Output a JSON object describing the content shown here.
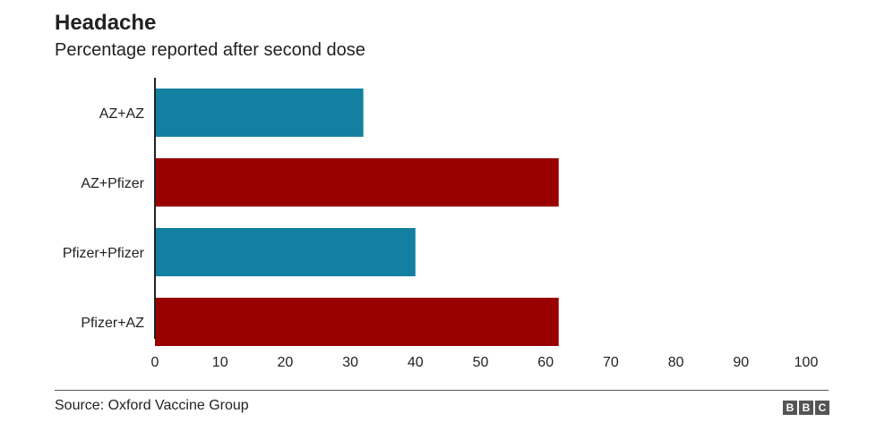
{
  "header": {
    "title": "Headache",
    "subtitle": "Percentage reported after second dose"
  },
  "footer": {
    "source": "Source: Oxford Vaccine Group",
    "logo_letters": [
      "B",
      "B",
      "C"
    ]
  },
  "colors": {
    "teal": "#1380A1",
    "red": "#990000",
    "axis": "#222222",
    "rule": "#555555"
  },
  "chart_data": {
    "type": "bar",
    "orientation": "horizontal",
    "categories": [
      "AZ+AZ",
      "AZ+Pfizer",
      "Pfizer+Pfizer",
      "Pfizer+AZ"
    ],
    "values": [
      32,
      62,
      40,
      62
    ],
    "bar_colors": [
      "#1380A1",
      "#990000",
      "#1380A1",
      "#990000"
    ],
    "title": "Headache",
    "subtitle": "Percentage reported after second dose",
    "xlim": [
      0,
      100
    ],
    "xticks": [
      0,
      10,
      20,
      30,
      40,
      50,
      60,
      70,
      80,
      90,
      100
    ],
    "grid": false,
    "legend": "none"
  }
}
